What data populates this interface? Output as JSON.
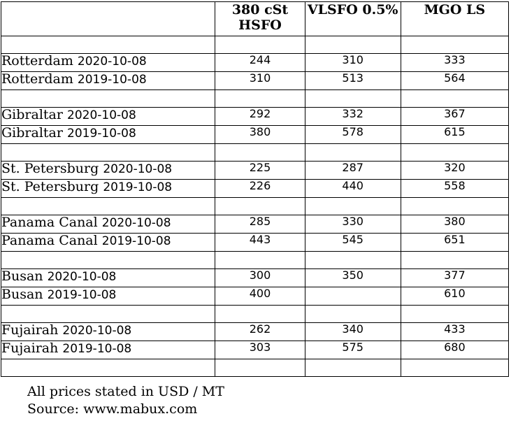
{
  "table": {
    "headers": [
      "",
      "380 cSt HSFO",
      "VLSFO 0.5%",
      "MGO LS"
    ],
    "groups": [
      {
        "rows": [
          {
            "port": "Rotterdam",
            "date": "2020-10-08",
            "values": [
              "244",
              "310",
              "333"
            ]
          },
          {
            "port": "Rotterdam",
            "date": "2019-10-08",
            "values": [
              "310",
              "513",
              "564"
            ]
          }
        ]
      },
      {
        "rows": [
          {
            "port": "Gibraltar",
            "date": "2020-10-08",
            "values": [
              "292",
              "332",
              "367"
            ]
          },
          {
            "port": "Gibraltar",
            "date": "2019-10-08",
            "values": [
              "380",
              "578",
              "615"
            ]
          }
        ]
      },
      {
        "rows": [
          {
            "port": "St. Petersburg",
            "date": "2020-10-08",
            "values": [
              "225",
              "287",
              "320"
            ]
          },
          {
            "port": "St. Petersburg",
            "date": "2019-10-08",
            "values": [
              "226",
              "440",
              "558"
            ]
          }
        ]
      },
      {
        "rows": [
          {
            "port": "Panama Canal",
            "date": "2020-10-08",
            "values": [
              "285",
              "330",
              "380"
            ]
          },
          {
            "port": "Panama Canal",
            "date": "2019-10-08",
            "values": [
              "443",
              "545",
              "651"
            ]
          }
        ]
      },
      {
        "rows": [
          {
            "port": "Busan",
            "date": "2020-10-08",
            "values": [
              "300",
              "350",
              "377"
            ]
          },
          {
            "port": "Busan",
            "date": "2019-10-08",
            "values": [
              "400",
              "",
              "610"
            ]
          }
        ]
      },
      {
        "rows": [
          {
            "port": "Fujairah",
            "date": "2020-10-08",
            "values": [
              "262",
              "340",
              "433"
            ]
          },
          {
            "port": "Fujairah",
            "date": "2019-10-08",
            "values": [
              "303",
              "575",
              "680"
            ]
          }
        ]
      }
    ]
  },
  "notes": {
    "line1": "All prices stated in USD / MT",
    "line2": "Source: www.mabux.com"
  }
}
